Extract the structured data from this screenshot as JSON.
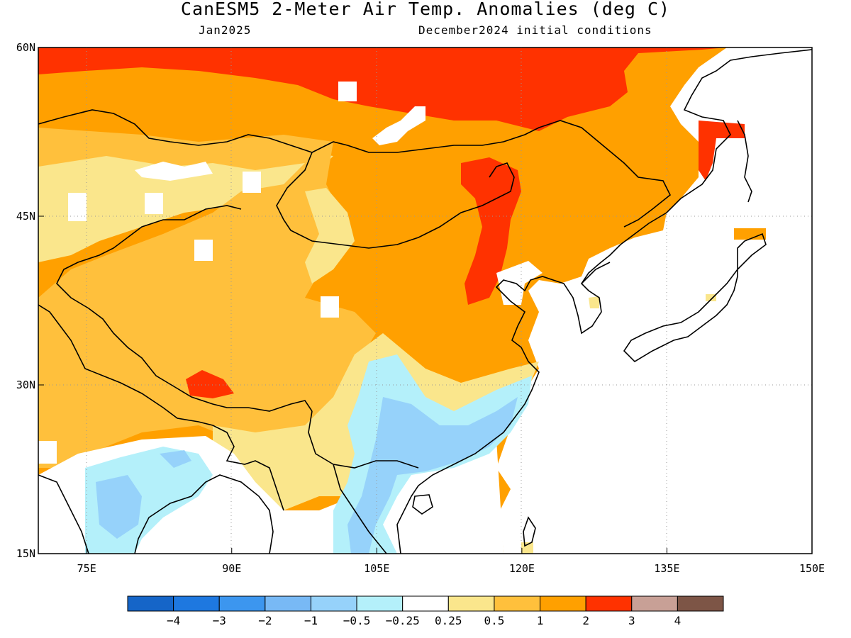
{
  "title": "CanESM5 2-Meter Air Temp. Anomalies (deg C)",
  "subtitle_left": "Jan2025",
  "subtitle_right": "December2024 initial conditions",
  "map": {
    "lon_range": [
      70,
      150
    ],
    "lat_range": [
      15,
      60
    ],
    "lon_ticks": [
      {
        "value": 75,
        "label": "75E"
      },
      {
        "value": 90,
        "label": "90E"
      },
      {
        "value": 105,
        "label": "105E"
      },
      {
        "value": 120,
        "label": "120E"
      },
      {
        "value": 135,
        "label": "135E"
      },
      {
        "value": 150,
        "label": "150E"
      }
    ],
    "lat_ticks": [
      {
        "value": 60,
        "label": "60N"
      },
      {
        "value": 45,
        "label": "45N"
      },
      {
        "value": 30,
        "label": "30N"
      },
      {
        "value": 15,
        "label": "15N"
      }
    ],
    "gridlines": "dotted",
    "land_color_missing": "#ffffff"
  },
  "colorbar": {
    "colors": [
      "#1565c8",
      "#1e78e0",
      "#3c96ef",
      "#78b9f5",
      "#96d2fa",
      "#b4f0fa",
      "#ffffff",
      "#fae68c",
      "#ffc03c",
      "#ffa000",
      "#ff3200",
      "#c8a096",
      "#7d5546"
    ],
    "labels": [
      "−4",
      "−3",
      "−2",
      "−1",
      "−0.5",
      "−0.25",
      "0.25",
      "0.5",
      "1",
      "2",
      "3",
      "4"
    ]
  },
  "colors": {
    "neg_strong": "#78b9f5",
    "neg_weak": "#b4f0fa",
    "pos_light": "#fae68c",
    "pos_mid": "#ffc03c",
    "pos_strong": "#ffa000",
    "pos_max": "#ff3200",
    "coast": "#000000"
  }
}
